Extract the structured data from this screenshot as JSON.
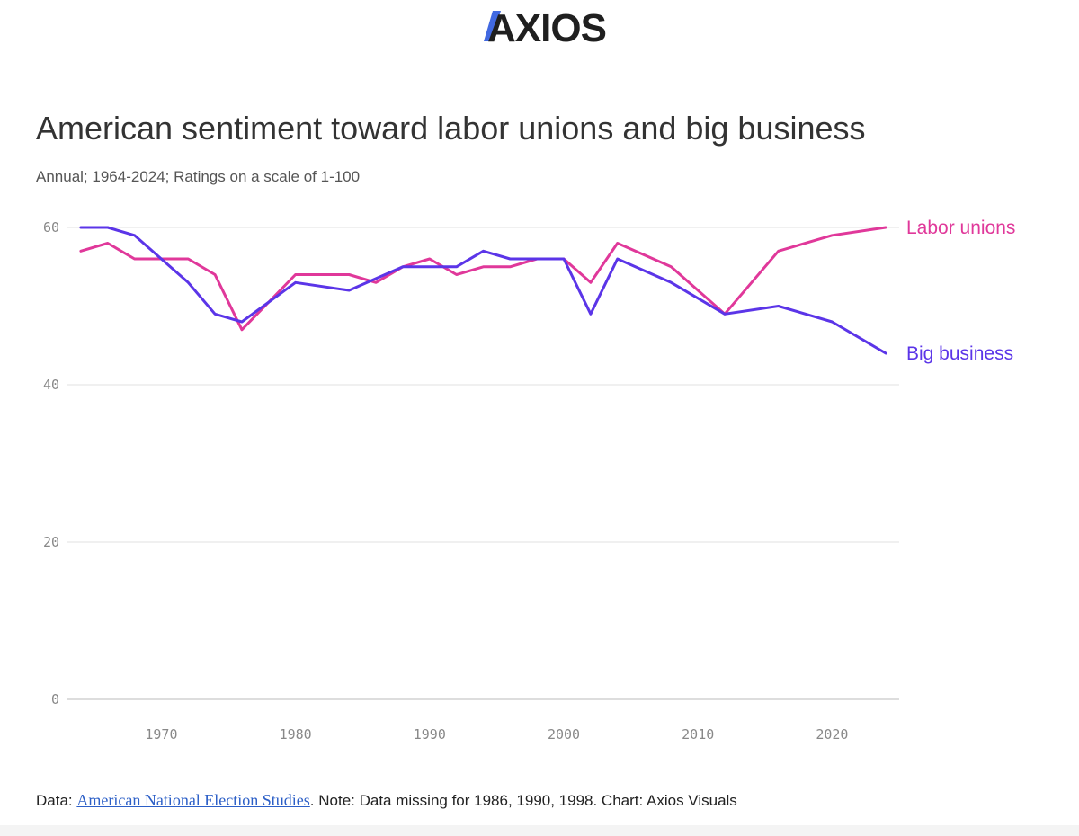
{
  "brand": {
    "logo_text": "AXIOS",
    "accent_color": "#4169e1",
    "text_color": "#1f1f1f"
  },
  "header": {
    "title": "American sentiment toward labor unions and big business",
    "subtitle": "Annual; 1964-2024; Ratings on a scale of 1-100"
  },
  "footer": {
    "prefix": "Data: ",
    "source_link": "American National Election Studies",
    "suffix": ". Note: Data missing for 1986, 1990, 1998. Chart: Axios Visuals"
  },
  "chart_data": {
    "type": "line",
    "title": "American sentiment toward labor unions and big business",
    "subtitle": "Annual; 1964-2024; Ratings on a scale of 1-100",
    "xlabel": "",
    "ylabel": "",
    "xlim": [
      1963,
      2025
    ],
    "ylim": [
      0,
      60
    ],
    "xticks": [
      1970,
      1980,
      1990,
      2000,
      2010,
      2020
    ],
    "yticks": [
      0,
      20,
      40,
      60
    ],
    "grid": true,
    "legend": "direct labels at right",
    "series": [
      {
        "name": "Labor unions",
        "color": "#e0389a",
        "x": [
          1964,
          1966,
          1968,
          1970,
          1972,
          1974,
          1976,
          1980,
          1984,
          1986,
          1988,
          1990,
          1992,
          1994,
          1996,
          1998,
          2000,
          2002,
          2004,
          2008,
          2012,
          2016,
          2020,
          2024
        ],
        "y": [
          57,
          58,
          56,
          56,
          56,
          54,
          47,
          54,
          54,
          53,
          55,
          56,
          54,
          55,
          55,
          56,
          56,
          53,
          58,
          55,
          49,
          57,
          59,
          60
        ]
      },
      {
        "name": "Big business",
        "color": "#5b35e8",
        "x": [
          1964,
          1966,
          1968,
          1970,
          1972,
          1974,
          1976,
          1980,
          1984,
          1986,
          1988,
          1990,
          1992,
          1994,
          1996,
          1998,
          2000,
          2002,
          2004,
          2008,
          2012,
          2016,
          2020,
          2024
        ],
        "y": [
          60,
          60,
          59,
          56,
          53,
          49,
          48,
          53,
          52,
          53.5,
          55,
          55,
          55,
          57,
          56,
          56,
          56,
          49,
          56,
          53,
          49,
          50,
          48,
          44
        ]
      }
    ]
  }
}
